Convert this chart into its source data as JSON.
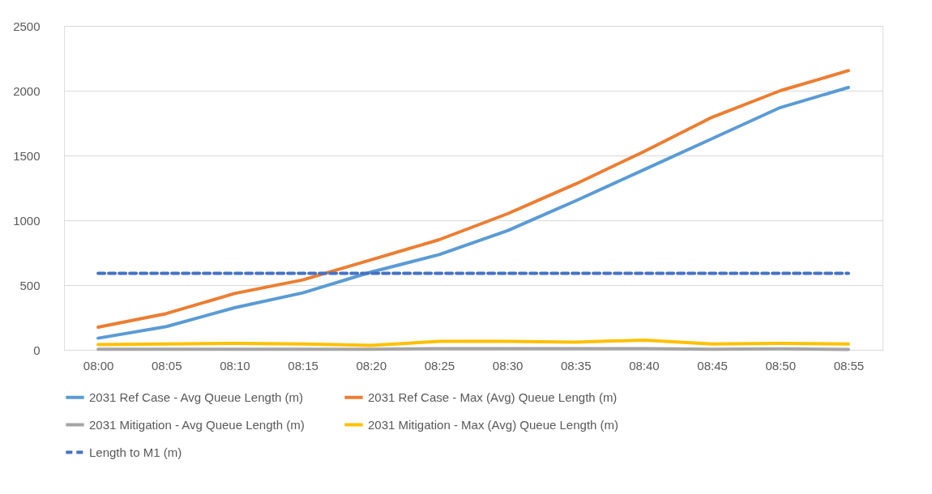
{
  "chart_data": {
    "type": "line",
    "categories": [
      "08:00",
      "08:05",
      "08:10",
      "08:15",
      "08:20",
      "08:25",
      "08:30",
      "08:35",
      "08:40",
      "08:45",
      "08:50",
      "08:55"
    ],
    "series": [
      {
        "name": "2031 Ref Case - Avg Queue Length (m)",
        "color": "#5b9bd5",
        "values": [
          90,
          180,
          325,
          440,
          600,
          735,
          920,
          1150,
          1390,
          1630,
          1870,
          2025
        ]
      },
      {
        "name": "2031 Ref Case - Max (Avg) Queue Length (m)",
        "color": "#ed7d31",
        "values": [
          175,
          280,
          435,
          540,
          695,
          850,
          1050,
          1280,
          1530,
          1795,
          2000,
          2155
        ]
      },
      {
        "name": "2031 Mitigation - Avg Queue Length (m)",
        "color": "#a5a5a5",
        "values": [
          5,
          5,
          5,
          5,
          5,
          10,
          10,
          10,
          10,
          5,
          8,
          3
        ]
      },
      {
        "name": "2031 Mitigation - Max (Avg) Queue Length (m)",
        "color": "#ffc000",
        "values": [
          40,
          45,
          50,
          45,
          35,
          65,
          65,
          60,
          75,
          45,
          50,
          45
        ]
      },
      {
        "name": "Length to M1 (m)",
        "color": "#4472c4",
        "line_style": "dashed",
        "values": [
          590,
          590,
          590,
          590,
          590,
          590,
          590,
          590,
          590,
          590,
          590,
          590
        ]
      }
    ],
    "ylim": [
      0,
      2500
    ],
    "yticks": [
      0,
      500,
      1000,
      1500,
      2000,
      2500
    ],
    "grid": "y",
    "legend": "bottom",
    "marker": "none",
    "line_style": "solid"
  }
}
